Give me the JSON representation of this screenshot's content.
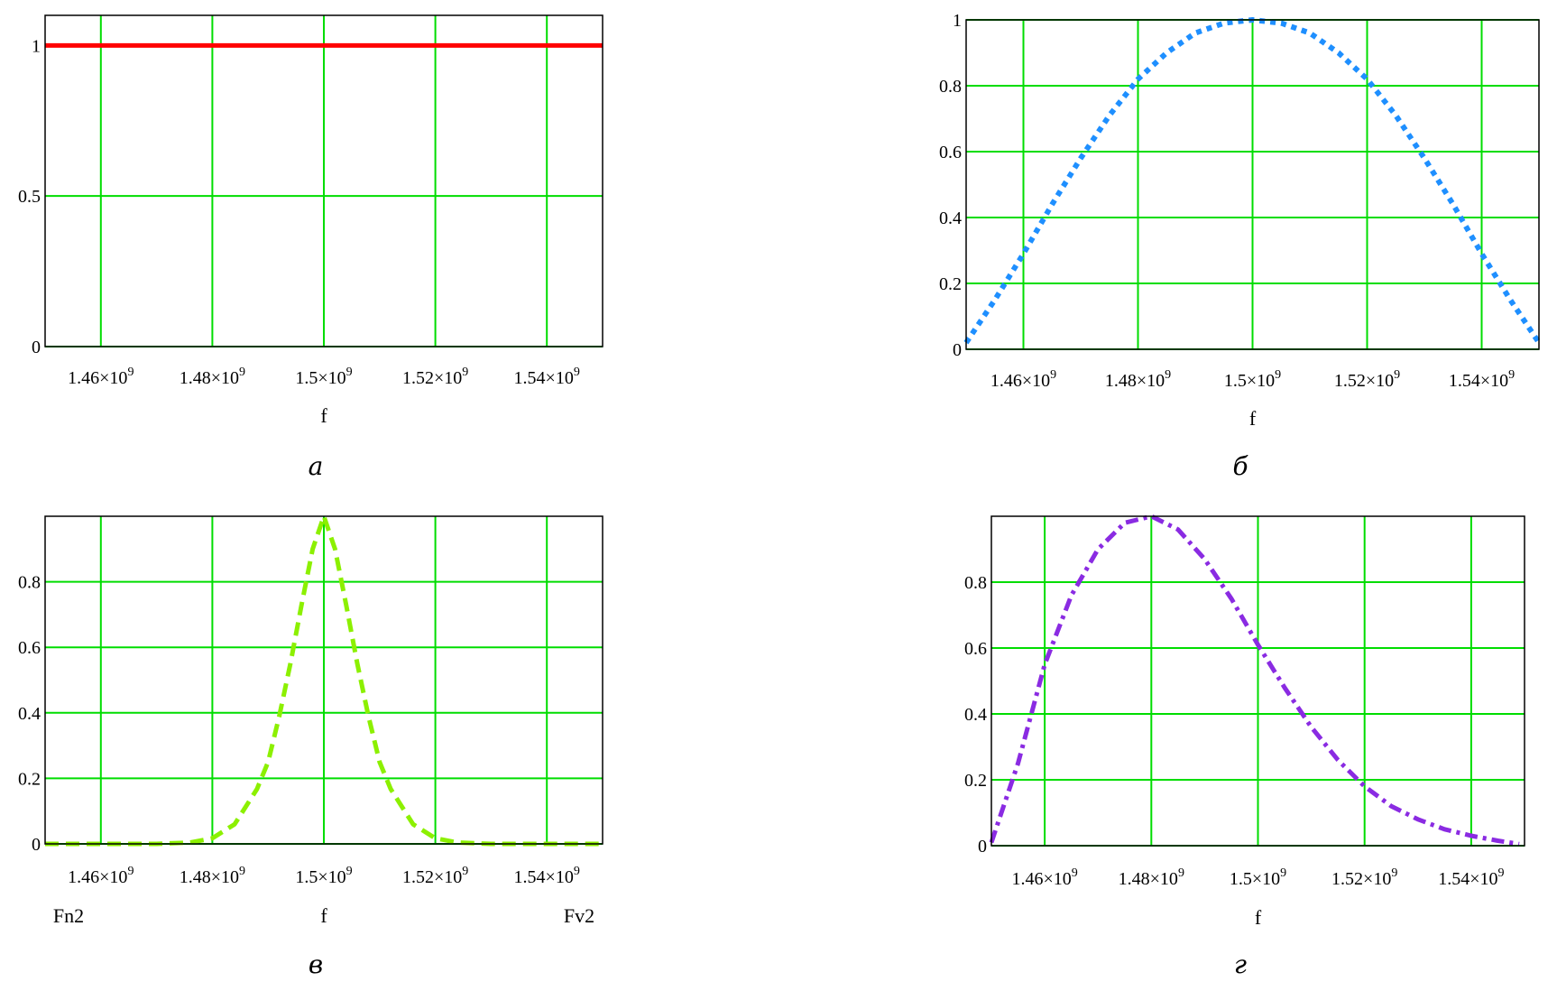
{
  "chart_data": [
    {
      "id": "a",
      "type": "line",
      "caption": "а",
      "xlabel": "f",
      "xlim": [
        1450000000,
        1550000000
      ],
      "ylim": [
        0,
        1.1
      ],
      "xticks": [
        1460000000,
        1480000000,
        1500000000,
        1520000000,
        1540000000
      ],
      "xtick_labels": [
        {
          "mant": "1.46",
          "exp": "9"
        },
        {
          "mant": "1.48",
          "exp": "9"
        },
        {
          "mant": "1.5",
          "exp": "9"
        },
        {
          "mant": "1.52",
          "exp": "9"
        },
        {
          "mant": "1.54",
          "exp": "9"
        }
      ],
      "yticks": [
        0,
        0.5,
        1
      ],
      "ytick_labels": [
        "0",
        "0.5",
        "1"
      ],
      "grid": true,
      "series": [
        {
          "color": "#ff0000",
          "style": "solid",
          "width": 5,
          "x": [
            1450000000,
            1550000000
          ],
          "y": [
            1,
            1
          ]
        }
      ]
    },
    {
      "id": "b",
      "type": "line",
      "caption": "б",
      "xlabel": "f",
      "xlim": [
        1450000000,
        1550000000
      ],
      "ylim": [
        0,
        1
      ],
      "xticks": [
        1460000000,
        1480000000,
        1500000000,
        1520000000,
        1540000000
      ],
      "xtick_labels": [
        {
          "mant": "1.46",
          "exp": "9"
        },
        {
          "mant": "1.48",
          "exp": "9"
        },
        {
          "mant": "1.5",
          "exp": "9"
        },
        {
          "mant": "1.52",
          "exp": "9"
        },
        {
          "mant": "1.54",
          "exp": "9"
        }
      ],
      "yticks": [
        0,
        0.2,
        0.4,
        0.6,
        0.8,
        1
      ],
      "ytick_labels": [
        "0",
        "0.2",
        "0.4",
        "0.6",
        "0.8",
        "1"
      ],
      "grid": true,
      "series": [
        {
          "color": "#1e8fff",
          "style": "dotted",
          "width": 6,
          "x": [
            1450000000,
            1455000000,
            1460000000,
            1465000000,
            1470000000,
            1475000000,
            1480000000,
            1485000000,
            1490000000,
            1495000000,
            1500000000,
            1505000000,
            1510000000,
            1515000000,
            1520000000,
            1525000000,
            1530000000,
            1535000000,
            1540000000,
            1545000000,
            1550000000
          ],
          "y": [
            0.02,
            0.15,
            0.29,
            0.44,
            0.58,
            0.71,
            0.82,
            0.9,
            0.96,
            0.99,
            1.0,
            0.99,
            0.96,
            0.9,
            0.82,
            0.71,
            0.58,
            0.44,
            0.29,
            0.15,
            0.02
          ]
        }
      ]
    },
    {
      "id": "v",
      "type": "line",
      "caption": "в",
      "xlabel": "f",
      "xlabel_left": "Fn2",
      "xlabel_right": "Fv2",
      "xlim": [
        1450000000,
        1550000000
      ],
      "ylim": [
        0,
        1
      ],
      "xticks": [
        1460000000,
        1480000000,
        1500000000,
        1520000000,
        1540000000
      ],
      "xtick_labels": [
        {
          "mant": "1.46",
          "exp": "9"
        },
        {
          "mant": "1.48",
          "exp": "9"
        },
        {
          "mant": "1.5",
          "exp": "9"
        },
        {
          "mant": "1.52",
          "exp": "9"
        },
        {
          "mant": "1.54",
          "exp": "9"
        }
      ],
      "yticks": [
        0,
        0.2,
        0.4,
        0.6,
        0.8
      ],
      "ytick_labels": [
        "0",
        "0.2",
        "0.4",
        "0.6",
        "0.8"
      ],
      "grid": true,
      "series": [
        {
          "color": "#8cf000",
          "style": "dashed",
          "width": 5,
          "x": [
            1450000000,
            1470000000,
            1476000000,
            1480000000,
            1484000000,
            1488000000,
            1490000000,
            1492000000,
            1494000000,
            1496000000,
            1498000000,
            1500000000,
            1502000000,
            1504000000,
            1506000000,
            1508000000,
            1510000000,
            1512000000,
            1516000000,
            1520000000,
            1524000000,
            1530000000,
            1550000000
          ],
          "y": [
            0,
            0,
            0.004,
            0.017,
            0.06,
            0.167,
            0.25,
            0.39,
            0.55,
            0.73,
            0.9,
            1.0,
            0.9,
            0.73,
            0.55,
            0.39,
            0.25,
            0.167,
            0.06,
            0.017,
            0.004,
            0,
            0
          ]
        }
      ]
    },
    {
      "id": "g",
      "type": "line",
      "caption": "г",
      "xlabel": "f",
      "xlim": [
        1450000000,
        1550000000
      ],
      "ylim": [
        0,
        1
      ],
      "xticks": [
        1460000000,
        1480000000,
        1500000000,
        1520000000,
        1540000000
      ],
      "xtick_labels": [
        {
          "mant": "1.46",
          "exp": "9"
        },
        {
          "mant": "1.48",
          "exp": "9"
        },
        {
          "mant": "1.5",
          "exp": "9"
        },
        {
          "mant": "1.52",
          "exp": "9"
        },
        {
          "mant": "1.54",
          "exp": "9"
        }
      ],
      "yticks": [
        0,
        0.2,
        0.4,
        0.6,
        0.8
      ],
      "ytick_labels": [
        "0",
        "0.2",
        "0.4",
        "0.6",
        "0.8"
      ],
      "grid": true,
      "series": [
        {
          "color": "#8a2be2",
          "style": "dashdot",
          "width": 5,
          "x": [
            1450000000,
            1455000000,
            1460000000,
            1465000000,
            1470000000,
            1475000000,
            1480000000,
            1485000000,
            1490000000,
            1495000000,
            1500000000,
            1505000000,
            1510000000,
            1515000000,
            1520000000,
            1525000000,
            1530000000,
            1535000000,
            1540000000,
            1545000000,
            1549000000
          ],
          "y": [
            0.01,
            0.25,
            0.55,
            0.76,
            0.9,
            0.98,
            1.0,
            0.96,
            0.87,
            0.75,
            0.61,
            0.48,
            0.36,
            0.26,
            0.18,
            0.12,
            0.08,
            0.05,
            0.03,
            0.015,
            0.005
          ]
        }
      ]
    }
  ]
}
